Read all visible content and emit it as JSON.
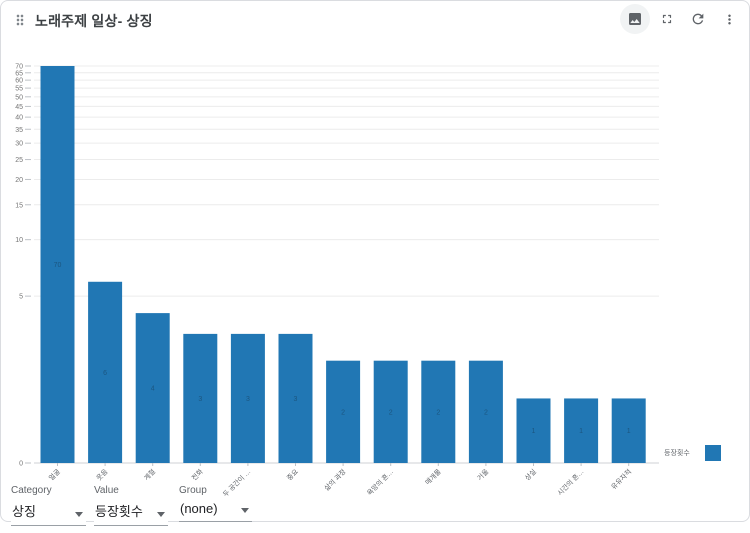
{
  "header": {
    "title": "노래주제 일상- 상징",
    "drag_handle_icon": "drag-indicator-icon",
    "actions": [
      {
        "icon": "image-chart-icon"
      },
      {
        "icon": "fullscreen-icon"
      },
      {
        "icon": "refresh-icon"
      },
      {
        "icon": "more-vert-icon"
      }
    ]
  },
  "chart_data": {
    "type": "bar",
    "title": "노래주제 일상- 상징",
    "categories": [
      "얼굴",
      "웃음",
      "계절",
      "전화",
      "두 공간이 …",
      "중요",
      "삶의 과정",
      "욕망의 흔…",
      "매개물",
      "거울",
      "상실",
      "시간의 흔…",
      "유유자적"
    ],
    "series": [
      {
        "name": "등장횟수",
        "values": [
          70,
          6,
          4,
          3,
          3,
          3,
          2,
          2,
          2,
          2,
          1,
          1,
          1
        ]
      }
    ],
    "xlabel": "",
    "ylabel": "",
    "ylim": [
      0,
      70
    ],
    "yticks": [
      0,
      5,
      10,
      15,
      20,
      25,
      30,
      35,
      40,
      45,
      50,
      55,
      60,
      65,
      70
    ],
    "scale": "log1p",
    "grid": true,
    "legend_position": "right",
    "bar_color": "#2177b4",
    "value_label_color": "#1a4e74"
  },
  "legend": {
    "label": "등장횟수",
    "swatch_color": "#2177b4"
  },
  "controls": [
    {
      "label": "Category",
      "value": "상징"
    },
    {
      "label": "Value",
      "value": "등장횟수"
    },
    {
      "label": "Group",
      "value": "(none)"
    }
  ],
  "colors": {
    "bar": "#2177b4",
    "toolbar_icon": "#5f6368",
    "circle_button_bg": "#f1f3f4"
  }
}
